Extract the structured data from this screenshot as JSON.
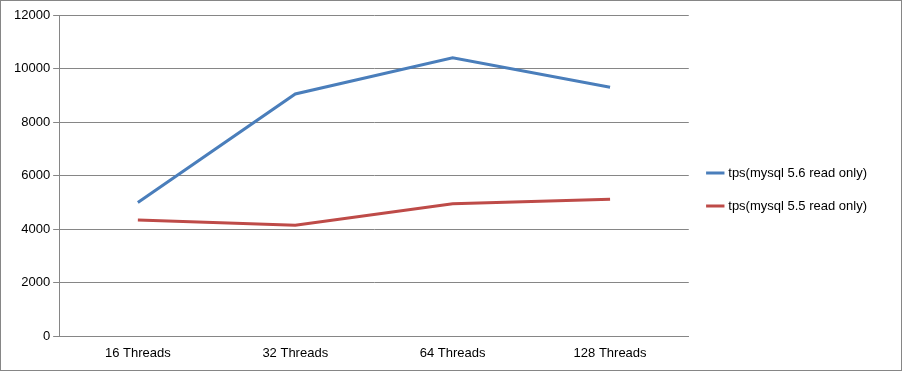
{
  "chart_data": {
    "type": "line",
    "categories": [
      "16 Threads",
      "32 Threads",
      "64 Threads",
      "128 Threads"
    ],
    "series": [
      {
        "name": "tps(mysql 5.6 read only)",
        "color": "#4a7ebb",
        "values": [
          5000,
          9050,
          10400,
          9300
        ]
      },
      {
        "name": "tps(mysql 5.5 read only)",
        "color": "#be4b48",
        "values": [
          4350,
          4150,
          4950,
          5120
        ]
      }
    ],
    "ylim": [
      0,
      12000
    ],
    "yticks": [
      0,
      2000,
      4000,
      6000,
      8000,
      10000,
      12000
    ],
    "grid": true,
    "legend": "right"
  }
}
